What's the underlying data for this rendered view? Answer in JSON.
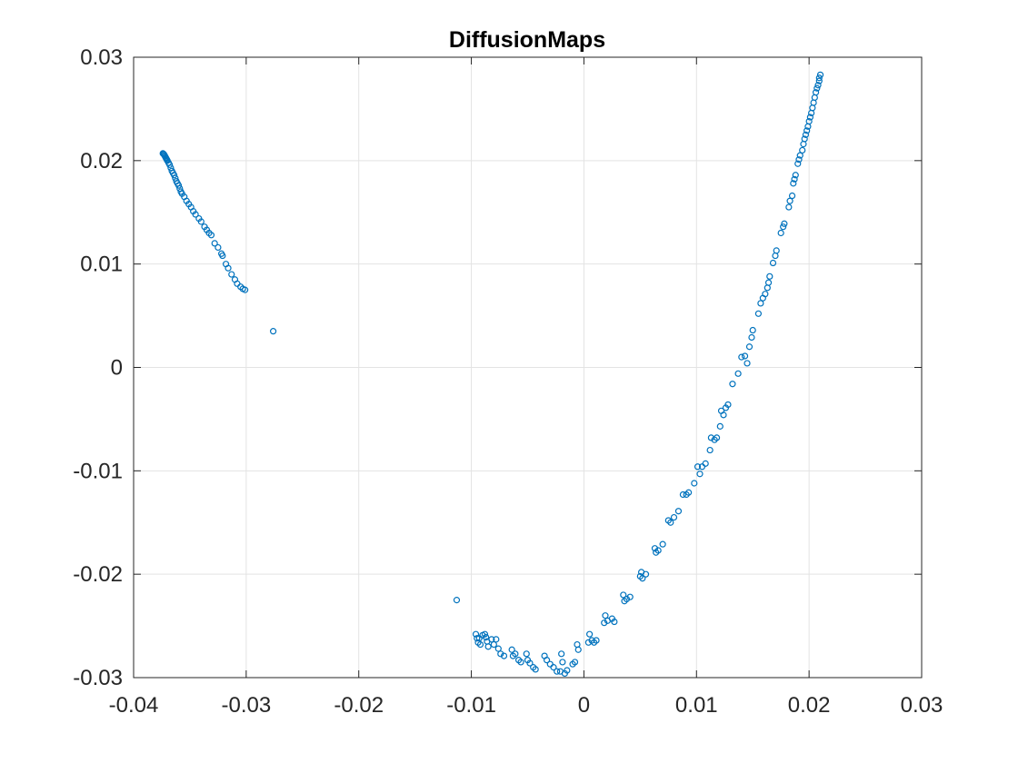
{
  "chart_data": {
    "type": "scatter",
    "title": "DiffusionMaps",
    "xlabel": "",
    "ylabel": "",
    "xlim": [
      -0.04,
      0.03
    ],
    "ylim": [
      -0.03,
      0.03
    ],
    "xticks": [
      -0.04,
      -0.03,
      -0.02,
      -0.01,
      0,
      0.01,
      0.02,
      0.03
    ],
    "xtick_labels": [
      "-0.04",
      "-0.03",
      "-0.02",
      "-0.01",
      "0",
      "0.01",
      "0.02",
      "0.03"
    ],
    "yticks": [
      -0.03,
      -0.02,
      -0.01,
      0,
      0.01,
      0.02,
      0.03
    ],
    "ytick_labels": [
      "-0.03",
      "-0.02",
      "-0.01",
      "0",
      "0.01",
      "0.02",
      "0.03"
    ],
    "grid": true,
    "marker": "open-circle",
    "marker_color": "#0072BD",
    "points": [
      [
        -0.0374,
        0.0207
      ],
      [
        -0.03735,
        0.02065
      ],
      [
        -0.0373,
        0.0206
      ],
      [
        -0.03725,
        0.0205
      ],
      [
        -0.0372,
        0.0204
      ],
      [
        -0.03715,
        0.0203
      ],
      [
        -0.0371,
        0.0202
      ],
      [
        -0.03705,
        0.0201
      ],
      [
        -0.037,
        0.02
      ],
      [
        -0.0369,
        0.0198
      ],
      [
        -0.0368,
        0.0196
      ],
      [
        -0.0367,
        0.0193
      ],
      [
        -0.0366,
        0.019
      ],
      [
        -0.0365,
        0.0188
      ],
      [
        -0.0364,
        0.0186
      ],
      [
        -0.0363,
        0.0183
      ],
      [
        -0.0362,
        0.018
      ],
      [
        -0.0361,
        0.0178
      ],
      [
        -0.036,
        0.0176
      ],
      [
        -0.0359,
        0.0173
      ],
      [
        -0.0358,
        0.017
      ],
      [
        -0.0357,
        0.0168
      ],
      [
        -0.0355,
        0.0165
      ],
      [
        -0.0353,
        0.0161
      ],
      [
        -0.0351,
        0.0158
      ],
      [
        -0.0349,
        0.0155
      ],
      [
        -0.0347,
        0.0151
      ],
      [
        -0.0345,
        0.0148
      ],
      [
        -0.0342,
        0.0144
      ],
      [
        -0.034,
        0.0141
      ],
      [
        -0.0337,
        0.0136
      ],
      [
        -0.0335,
        0.0133
      ],
      [
        -0.0333,
        0.013
      ],
      [
        -0.0331,
        0.0128
      ],
      [
        -0.0328,
        0.012
      ],
      [
        -0.0325,
        0.0116
      ],
      [
        -0.0322,
        0.011
      ],
      [
        -0.0321,
        0.0108
      ],
      [
        -0.0318,
        0.01
      ],
      [
        -0.0316,
        0.0096
      ],
      [
        -0.0313,
        0.009
      ],
      [
        -0.031,
        0.0085
      ],
      [
        -0.0308,
        0.0081
      ],
      [
        -0.0305,
        0.0078
      ],
      [
        -0.0303,
        0.0076
      ],
      [
        -0.0301,
        0.0075
      ],
      [
        -0.0276,
        0.0035
      ],
      [
        -0.0113,
        -0.0225
      ],
      [
        -0.0096,
        -0.0258
      ],
      [
        -0.0095,
        -0.0262
      ],
      [
        -0.0094,
        -0.0266
      ],
      [
        -0.0093,
        -0.0262
      ],
      [
        -0.0092,
        -0.0268
      ],
      [
        -0.009,
        -0.0259
      ],
      [
        -0.0088,
        -0.0258
      ],
      [
        -0.0087,
        -0.0261
      ],
      [
        -0.0086,
        -0.0265
      ],
      [
        -0.0085,
        -0.027
      ],
      [
        -0.0082,
        -0.0263
      ],
      [
        -0.008,
        -0.0268
      ],
      [
        -0.0078,
        -0.0263
      ],
      [
        -0.0076,
        -0.0272
      ],
      [
        -0.0074,
        -0.0277
      ],
      [
        -0.0071,
        -0.0279
      ],
      [
        -0.0064,
        -0.0273
      ],
      [
        -0.0063,
        -0.0279
      ],
      [
        -0.0061,
        -0.0277
      ],
      [
        -0.0058,
        -0.0283
      ],
      [
        -0.0056,
        -0.0285
      ],
      [
        -0.0051,
        -0.0277
      ],
      [
        -0.005,
        -0.0283
      ],
      [
        -0.0048,
        -0.0286
      ],
      [
        -0.0045,
        -0.029
      ],
      [
        -0.0043,
        -0.0292
      ],
      [
        -0.0035,
        -0.0279
      ],
      [
        -0.0033,
        -0.0283
      ],
      [
        -0.003,
        -0.0287
      ],
      [
        -0.0027,
        -0.029
      ],
      [
        -0.0024,
        -0.0294
      ],
      [
        -0.0021,
        -0.0294
      ],
      [
        -0.002,
        -0.0277
      ],
      [
        -0.0019,
        -0.0285
      ],
      [
        -0.0017,
        -0.0296
      ],
      [
        -0.0015,
        -0.0293
      ],
      [
        -0.001,
        -0.0287
      ],
      [
        -0.0008,
        -0.0285
      ],
      [
        -0.0006,
        -0.0268
      ],
      [
        -0.0005,
        -0.0273
      ],
      [
        0.0004,
        -0.0266
      ],
      [
        0.0005,
        -0.0258
      ],
      [
        0.0007,
        -0.0264
      ],
      [
        0.0009,
        -0.0266
      ],
      [
        0.0011,
        -0.0264
      ],
      [
        0.0018,
        -0.0247
      ],
      [
        0.0019,
        -0.024
      ],
      [
        0.0021,
        -0.0245
      ],
      [
        0.0025,
        -0.0243
      ],
      [
        0.0027,
        -0.0246
      ],
      [
        0.0035,
        -0.022
      ],
      [
        0.0036,
        -0.0226
      ],
      [
        0.0038,
        -0.0224
      ],
      [
        0.0041,
        -0.0222
      ],
      [
        0.005,
        -0.0202
      ],
      [
        0.0051,
        -0.0198
      ],
      [
        0.0052,
        -0.0204
      ],
      [
        0.0055,
        -0.02
      ],
      [
        0.0063,
        -0.0175
      ],
      [
        0.0064,
        -0.0179
      ],
      [
        0.0066,
        -0.0177
      ],
      [
        0.007,
        -0.0171
      ],
      [
        0.0075,
        -0.0148
      ],
      [
        0.0077,
        -0.015
      ],
      [
        0.008,
        -0.0145
      ],
      [
        0.0084,
        -0.0139
      ],
      [
        0.0088,
        -0.0123
      ],
      [
        0.0091,
        -0.0123
      ],
      [
        0.0093,
        -0.0121
      ],
      [
        0.0098,
        -0.0112
      ],
      [
        0.0101,
        -0.0096
      ],
      [
        0.0103,
        -0.0103
      ],
      [
        0.0105,
        -0.0096
      ],
      [
        0.0108,
        -0.0093
      ],
      [
        0.0112,
        -0.008
      ],
      [
        0.0113,
        -0.0068
      ],
      [
        0.0116,
        -0.007
      ],
      [
        0.0118,
        -0.0068
      ],
      [
        0.0121,
        -0.0057
      ],
      [
        0.0122,
        -0.0042
      ],
      [
        0.0124,
        -0.0046
      ],
      [
        0.0126,
        -0.0039
      ],
      [
        0.0128,
        -0.0036
      ],
      [
        0.0132,
        -0.0016
      ],
      [
        0.0137,
        -0.0006
      ],
      [
        0.014,
        0.001
      ],
      [
        0.0143,
        0.0011
      ],
      [
        0.0145,
        0.0004
      ],
      [
        0.0147,
        0.002
      ],
      [
        0.0149,
        0.0029
      ],
      [
        0.015,
        0.0036
      ],
      [
        0.0155,
        0.0052
      ],
      [
        0.0157,
        0.0062
      ],
      [
        0.0159,
        0.0067
      ],
      [
        0.0161,
        0.0071
      ],
      [
        0.0163,
        0.0077
      ],
      [
        0.0164,
        0.0082
      ],
      [
        0.0165,
        0.0088
      ],
      [
        0.0168,
        0.0101
      ],
      [
        0.017,
        0.0108
      ],
      [
        0.0171,
        0.0113
      ],
      [
        0.0175,
        0.013
      ],
      [
        0.0177,
        0.0136
      ],
      [
        0.0178,
        0.0139
      ],
      [
        0.0182,
        0.0155
      ],
      [
        0.0183,
        0.0161
      ],
      [
        0.0185,
        0.0166
      ],
      [
        0.0186,
        0.0178
      ],
      [
        0.0187,
        0.0182
      ],
      [
        0.0188,
        0.0186
      ],
      [
        0.019,
        0.0197
      ],
      [
        0.0191,
        0.0201
      ],
      [
        0.0192,
        0.0205
      ],
      [
        0.0194,
        0.021
      ],
      [
        0.0195,
        0.0216
      ],
      [
        0.0196,
        0.0221
      ],
      [
        0.0197,
        0.0225
      ],
      [
        0.0198,
        0.0229
      ],
      [
        0.0199,
        0.0233
      ],
      [
        0.02,
        0.0238
      ],
      [
        0.0201,
        0.0242
      ],
      [
        0.0202,
        0.0246
      ],
      [
        0.0203,
        0.0251
      ],
      [
        0.0204,
        0.0256
      ],
      [
        0.0205,
        0.0261
      ],
      [
        0.0206,
        0.0266
      ],
      [
        0.0207,
        0.027
      ],
      [
        0.0208,
        0.0273
      ],
      [
        0.0209,
        0.0277
      ],
      [
        0.0209,
        0.028
      ],
      [
        0.021,
        0.0283
      ]
    ]
  }
}
